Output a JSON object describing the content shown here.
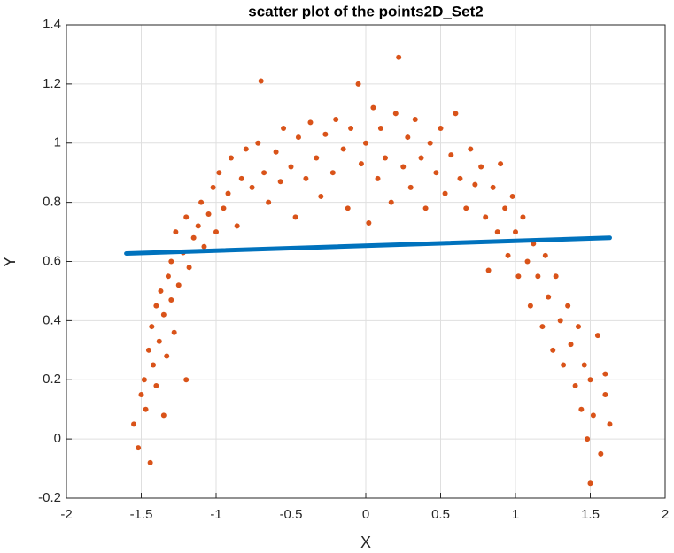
{
  "chart_data": {
    "type": "scatter",
    "title": "scatter plot of the points2D_Set2",
    "x_label": "X",
    "y_label": "Y",
    "xlim": [
      -2,
      2
    ],
    "ylim": [
      -0.2,
      1.4
    ],
    "xticks": [
      -2,
      -1.5,
      -1,
      -0.5,
      0,
      0.5,
      1,
      1.5,
      2
    ],
    "yticks": [
      -0.2,
      0,
      0.2,
      0.4,
      0.6,
      0.8,
      1,
      1.2,
      1.4
    ],
    "grid": true,
    "series": [
      {
        "color": "#d95319",
        "mode": "markers",
        "x": [
          -1.55,
          -1.52,
          -1.5,
          -1.48,
          -1.47,
          -1.45,
          -1.44,
          -1.43,
          -1.42,
          -1.4,
          -1.4,
          -1.38,
          -1.37,
          -1.35,
          -1.35,
          -1.33,
          -1.32,
          -1.3,
          -1.3,
          -1.28,
          -1.27,
          -1.25,
          -1.22,
          -1.2,
          -1.2,
          -1.18,
          -1.15,
          -1.12,
          -1.1,
          -1.08,
          -1.05,
          -1.02,
          -1.0,
          -0.98,
          -0.95,
          -0.92,
          -0.9,
          -0.86,
          -0.83,
          -0.8,
          -0.76,
          -0.72,
          -0.7,
          -0.68,
          -0.65,
          -0.6,
          -0.57,
          -0.55,
          -0.5,
          -0.47,
          -0.45,
          -0.4,
          -0.37,
          -0.33,
          -0.3,
          -0.27,
          -0.22,
          -0.2,
          -0.15,
          -0.12,
          -0.1,
          -0.05,
          -0.03,
          0.0,
          0.02,
          0.05,
          0.08,
          0.1,
          0.13,
          0.17,
          0.2,
          0.22,
          0.25,
          0.28,
          0.3,
          0.33,
          0.37,
          0.4,
          0.43,
          0.47,
          0.5,
          0.53,
          0.57,
          0.6,
          0.63,
          0.67,
          0.7,
          0.73,
          0.77,
          0.8,
          0.82,
          0.85,
          0.88,
          0.9,
          0.93,
          0.95,
          0.98,
          1.0,
          1.02,
          1.05,
          1.08,
          1.1,
          1.12,
          1.15,
          1.18,
          1.2,
          1.22,
          1.25,
          1.27,
          1.3,
          1.32,
          1.35,
          1.37,
          1.4,
          1.42,
          1.44,
          1.46,
          1.48,
          1.5,
          1.5,
          1.52,
          1.55,
          1.57,
          1.6,
          1.63,
          1.6
        ],
        "values": [
          0.05,
          -0.03,
          0.15,
          0.2,
          0.1,
          0.3,
          -0.08,
          0.38,
          0.25,
          0.45,
          0.18,
          0.33,
          0.5,
          0.42,
          0.08,
          0.28,
          0.55,
          0.47,
          0.6,
          0.36,
          0.7,
          0.52,
          0.63,
          0.75,
          0.2,
          0.58,
          0.68,
          0.72,
          0.8,
          0.65,
          0.76,
          0.85,
          0.7,
          0.9,
          0.78,
          0.83,
          0.95,
          0.72,
          0.88,
          0.98,
          0.85,
          1.0,
          1.21,
          0.9,
          0.8,
          0.97,
          0.87,
          1.05,
          0.92,
          0.75,
          1.02,
          0.88,
          1.07,
          0.95,
          0.82,
          1.03,
          0.9,
          1.08,
          0.98,
          0.78,
          1.05,
          1.2,
          0.93,
          1.0,
          0.73,
          1.12,
          0.88,
          1.05,
          0.95,
          0.8,
          1.1,
          1.29,
          0.92,
          1.02,
          0.85,
          1.08,
          0.95,
          0.78,
          1.0,
          0.9,
          1.05,
          0.83,
          0.96,
          1.1,
          0.88,
          0.78,
          0.98,
          0.86,
          0.92,
          0.75,
          0.57,
          0.85,
          0.7,
          0.93,
          0.78,
          0.62,
          0.82,
          0.7,
          0.55,
          0.75,
          0.6,
          0.45,
          0.66,
          0.55,
          0.38,
          0.62,
          0.48,
          0.3,
          0.55,
          0.4,
          0.25,
          0.45,
          0.32,
          0.18,
          0.38,
          0.1,
          0.25,
          0.0,
          0.2,
          -0.15,
          0.08,
          0.35,
          -0.05,
          0.15,
          0.05,
          0.22
        ]
      },
      {
        "color": "#0072bd",
        "mode": "line",
        "x": [
          -1.6,
          1.63
        ],
        "values": [
          0.627,
          0.68
        ]
      }
    ]
  }
}
